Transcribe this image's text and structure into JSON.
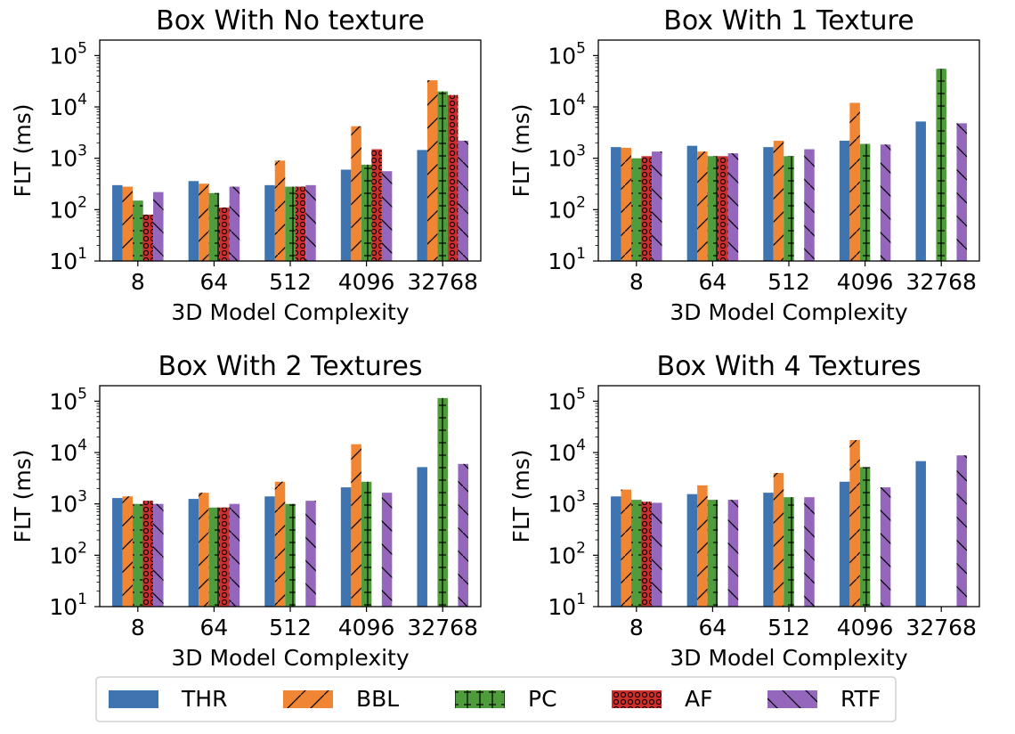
{
  "chart_data": [
    {
      "type": "bar",
      "title": "Box With No texture",
      "xlabel": "3D Model Complexity",
      "ylabel": "FLT (ms)",
      "yscale": "log",
      "ylim": [
        10,
        200000
      ],
      "categories": [
        "8",
        "64",
        "512",
        "4096",
        "32768"
      ],
      "series": [
        {
          "name": "THR",
          "values": [
            300,
            360,
            300,
            600,
            1450
          ]
        },
        {
          "name": "BBL",
          "values": [
            280,
            320,
            900,
            4200,
            33000
          ]
        },
        {
          "name": "PC",
          "values": [
            150,
            210,
            280,
            750,
            20000
          ]
        },
        {
          "name": "AF",
          "values": [
            80,
            110,
            280,
            1500,
            17000
          ]
        },
        {
          "name": "RTF",
          "values": [
            220,
            280,
            300,
            560,
            2200
          ]
        }
      ]
    },
    {
      "type": "bar",
      "title": "Box With 1 Texture",
      "xlabel": "3D Model Complexity",
      "ylabel": "FLT (ms)",
      "yscale": "log",
      "ylim": [
        10,
        200000
      ],
      "categories": [
        "8",
        "64",
        "512",
        "4096",
        "32768"
      ],
      "series": [
        {
          "name": "THR",
          "values": [
            1650,
            1750,
            1650,
            2200,
            5200
          ]
        },
        {
          "name": "BBL",
          "values": [
            1600,
            1350,
            2200,
            12000,
            null
          ]
        },
        {
          "name": "PC",
          "values": [
            1000,
            1100,
            1100,
            1900,
            55000
          ]
        },
        {
          "name": "AF",
          "values": [
            1100,
            1100,
            null,
            null,
            null
          ]
        },
        {
          "name": "RTF",
          "values": [
            1350,
            1250,
            1500,
            1850,
            4800
          ]
        }
      ]
    },
    {
      "type": "bar",
      "title": "Box With 2 Textures",
      "xlabel": "3D Model Complexity",
      "ylabel": "FLT (ms)",
      "yscale": "log",
      "ylim": [
        10,
        200000
      ],
      "categories": [
        "8",
        "64",
        "512",
        "4096",
        "32768"
      ],
      "series": [
        {
          "name": "THR",
          "values": [
            1300,
            1250,
            1400,
            2100,
            5200
          ]
        },
        {
          "name": "BBL",
          "values": [
            1400,
            1650,
            2700,
            14500,
            null
          ]
        },
        {
          "name": "PC",
          "values": [
            1000,
            850,
            1000,
            2700,
            115000
          ]
        },
        {
          "name": "AF",
          "values": [
            1150,
            850,
            null,
            null,
            null
          ]
        },
        {
          "name": "RTF",
          "values": [
            1000,
            1000,
            1150,
            1650,
            6000
          ]
        }
      ]
    },
    {
      "type": "bar",
      "title": "Box With 4 Textures",
      "xlabel": "3D Model Complexity",
      "ylabel": "FLT (ms)",
      "yscale": "log",
      "ylim": [
        10,
        200000
      ],
      "categories": [
        "8",
        "64",
        "512",
        "4096",
        "32768"
      ],
      "series": [
        {
          "name": "THR",
          "values": [
            1400,
            1550,
            1650,
            2700,
            6800
          ]
        },
        {
          "name": "BBL",
          "values": [
            1900,
            2300,
            4000,
            17500,
            null
          ]
        },
        {
          "name": "PC",
          "values": [
            1200,
            1200,
            1350,
            5200,
            null
          ]
        },
        {
          "name": "AF",
          "values": [
            1100,
            null,
            null,
            null,
            null
          ]
        },
        {
          "name": "RTF",
          "values": [
            1050,
            1200,
            1350,
            2100,
            8800
          ]
        }
      ]
    }
  ],
  "legend": {
    "placement": "bottom-center",
    "items": [
      {
        "name": "THR",
        "color": "#3e74b0",
        "pattern": "none"
      },
      {
        "name": "BBL",
        "color": "#f08533",
        "pattern": "forward-diagonal"
      },
      {
        "name": "PC",
        "color": "#4e9c3c",
        "pattern": "plus"
      },
      {
        "name": "AF",
        "color": "#cc2f2c",
        "pattern": "circles"
      },
      {
        "name": "RTF",
        "color": "#9467bd",
        "pattern": "back-diagonal"
      }
    ]
  },
  "y_tick_labels": [
    {
      "base": "10",
      "exp": "1"
    },
    {
      "base": "10",
      "exp": "2"
    },
    {
      "base": "10",
      "exp": "3"
    },
    {
      "base": "10",
      "exp": "4"
    },
    {
      "base": "10",
      "exp": "5"
    }
  ]
}
